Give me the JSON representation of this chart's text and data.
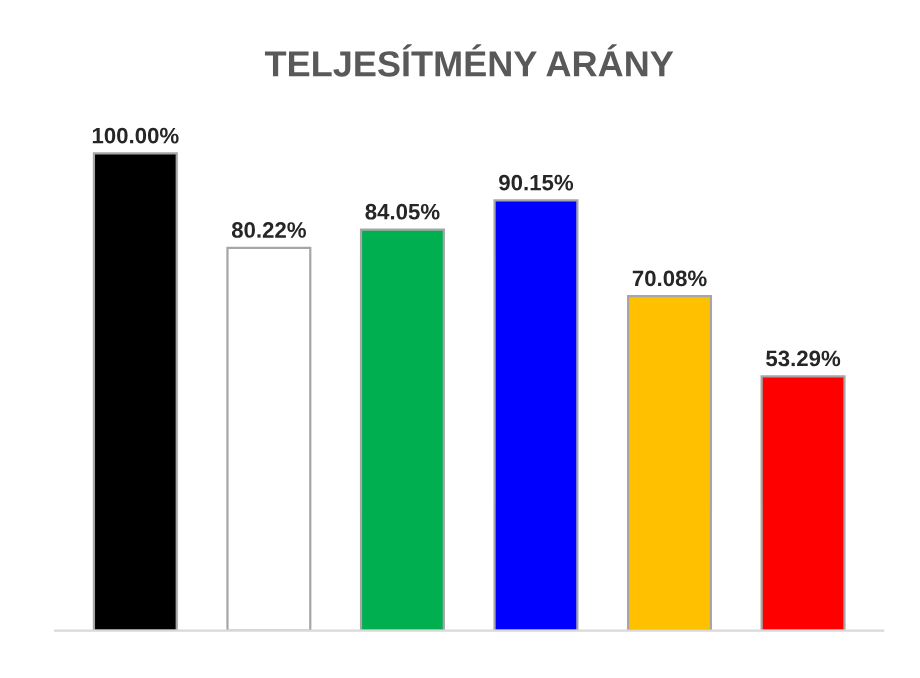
{
  "chart_data": {
    "type": "bar",
    "title": "TELJESÍTMÉNY ARÁNY",
    "categories": [
      null,
      null,
      null,
      null,
      null,
      null
    ],
    "values": [
      100.0,
      80.22,
      84.05,
      90.15,
      70.08,
      53.29
    ],
    "value_labels": [
      "100.00%",
      "80.22%",
      "84.05%",
      "90.15%",
      "70.08%",
      "53.29%"
    ],
    "colors": [
      "#000000",
      "#ffffff",
      "#00b050",
      "#0000ff",
      "#ffc000",
      "#ff0000"
    ],
    "grid": false,
    "legend": false
  }
}
